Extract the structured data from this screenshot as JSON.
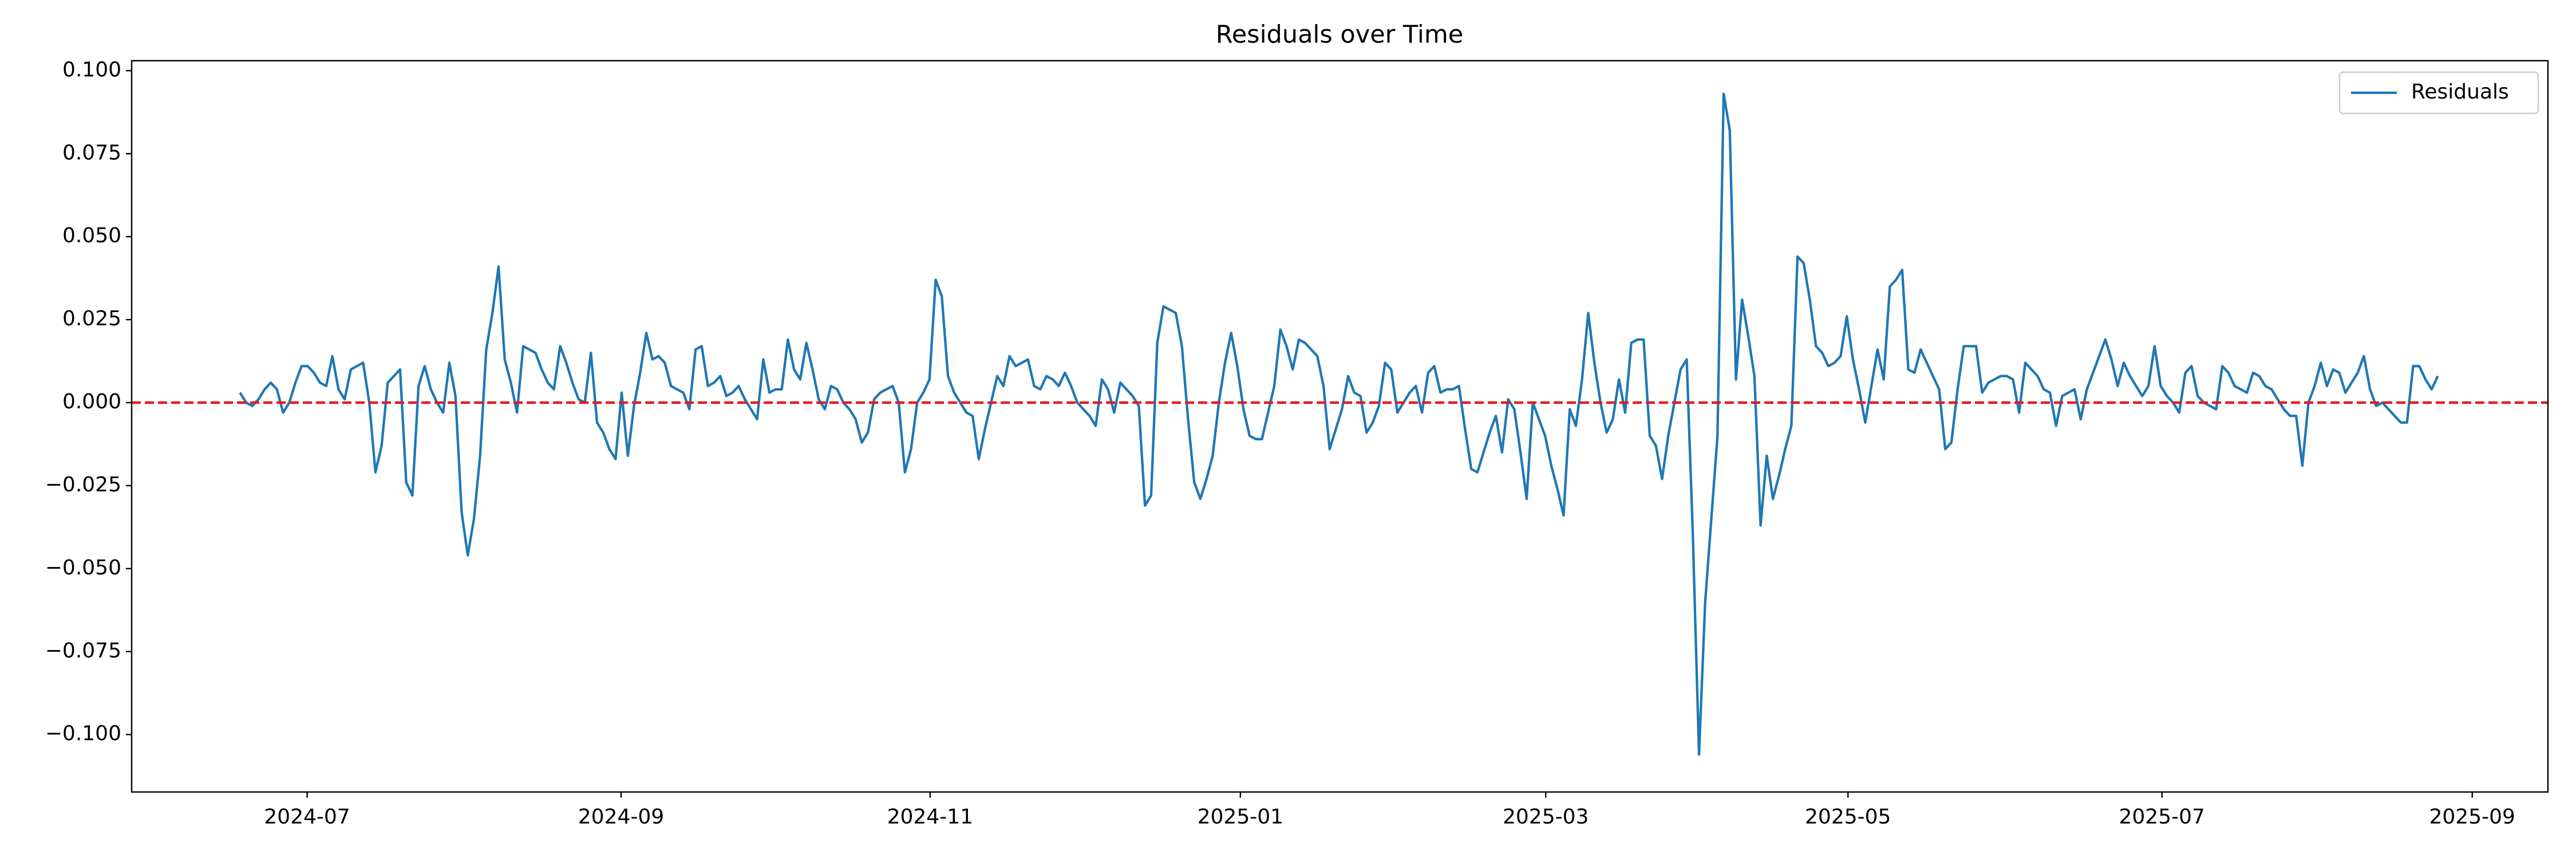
{
  "chart_data": {
    "type": "line",
    "title": "Residuals over Time",
    "series": [
      {
        "name": "Residuals",
        "color": "#1f77b4",
        "values": [
          0.003,
          0.0,
          -0.001,
          0.001,
          0.004,
          0.006,
          0.004,
          -0.003,
          0.0,
          0.006,
          0.011,
          0.011,
          0.009,
          0.006,
          0.005,
          0.014,
          0.004,
          0.001,
          0.01,
          0.011,
          0.012,
          0.0,
          -0.021,
          -0.013,
          0.006,
          0.008,
          0.01,
          -0.024,
          -0.028,
          0.005,
          0.011,
          0.004,
          0.0,
          -0.003,
          0.012,
          0.002,
          -0.033,
          -0.046,
          -0.035,
          -0.016,
          0.016,
          0.027,
          0.041,
          0.013,
          0.006,
          -0.003,
          0.017,
          0.016,
          0.015,
          0.01,
          0.006,
          0.004,
          0.017,
          0.012,
          0.006,
          0.001,
          0.0,
          0.015,
          -0.006,
          -0.009,
          -0.014,
          -0.017,
          0.003,
          -0.016,
          -0.001,
          0.009,
          0.021,
          0.013,
          0.014,
          0.012,
          0.005,
          0.004,
          0.003,
          -0.002,
          0.016,
          0.017,
          0.005,
          0.006,
          0.008,
          0.002,
          0.003,
          0.005,
          0.001,
          -0.002,
          -0.005,
          0.013,
          0.003,
          0.004,
          0.004,
          0.019,
          0.01,
          0.007,
          0.018,
          0.01,
          0.001,
          -0.002,
          0.005,
          0.004,
          0.0,
          -0.002,
          -0.005,
          -0.012,
          -0.009,
          0.001,
          0.003,
          0.004,
          0.005,
          0.0,
          -0.021,
          -0.014,
          0.0,
          0.003,
          0.007,
          0.037,
          0.032,
          0.008,
          0.003,
          0.0,
          -0.003,
          -0.004,
          -0.017,
          -0.008,
          0.0,
          0.008,
          0.005,
          0.014,
          0.011,
          0.012,
          0.013,
          0.005,
          0.004,
          0.008,
          0.007,
          0.005,
          0.009,
          0.005,
          0.0,
          -0.002,
          -0.004,
          -0.007,
          0.007,
          0.004,
          -0.003,
          0.006,
          0.004,
          0.002,
          -0.001,
          -0.031,
          -0.028,
          0.018,
          0.029,
          0.028,
          0.027,
          0.017,
          -0.005,
          -0.024,
          -0.029,
          -0.023,
          -0.016,
          0.0,
          0.012,
          0.021,
          0.011,
          -0.002,
          -0.01,
          -0.011,
          -0.011,
          -0.003,
          0.005,
          0.022,
          0.017,
          0.01,
          0.019,
          0.018,
          0.016,
          0.014,
          0.005,
          -0.014,
          -0.008,
          -0.002,
          0.008,
          0.003,
          0.002,
          -0.009,
          -0.006,
          -0.001,
          0.012,
          0.01,
          -0.003,
          0.0,
          0.003,
          0.005,
          -0.003,
          0.009,
          0.011,
          0.003,
          0.004,
          0.004,
          0.005,
          -0.008,
          -0.02,
          -0.021,
          -0.015,
          -0.009,
          -0.004,
          -0.015,
          0.001,
          -0.002,
          -0.015,
          -0.029,
          0.0,
          -0.005,
          -0.01,
          -0.019,
          -0.026,
          -0.034,
          -0.002,
          -0.007,
          0.007,
          0.027,
          0.012,
          0.0,
          -0.009,
          -0.005,
          0.007,
          -0.003,
          0.018,
          0.019,
          0.019,
          -0.01,
          -0.013,
          -0.023,
          -0.01,
          0.0,
          0.01,
          0.013,
          -0.04,
          -0.106,
          -0.06,
          -0.035,
          -0.01,
          0.093,
          0.082,
          0.007,
          0.031,
          0.02,
          0.008,
          -0.037,
          -0.016,
          -0.029,
          -0.022,
          -0.014,
          -0.007,
          0.044,
          0.042,
          0.031,
          0.017,
          0.015,
          0.011,
          0.012,
          0.014,
          0.026,
          0.013,
          0.004,
          -0.006,
          0.005,
          0.016,
          0.007,
          0.035,
          0.037,
          0.04,
          0.01,
          0.009,
          0.016,
          0.012,
          0.008,
          0.004,
          -0.014,
          -0.012,
          0.004,
          0.017,
          0.017,
          0.017,
          0.003,
          0.006,
          0.007,
          0.008,
          0.008,
          0.007,
          -0.003,
          0.012,
          0.01,
          0.008,
          0.004,
          0.003,
          -0.007,
          0.002,
          0.003,
          0.004,
          -0.005,
          0.004,
          0.009,
          0.014,
          0.019,
          0.013,
          0.005,
          0.012,
          0.008,
          0.005,
          0.002,
          0.005,
          0.017,
          0.005,
          0.002,
          0.0,
          -0.003,
          0.009,
          0.011,
          0.002,
          0.0,
          -0.001,
          -0.002,
          0.011,
          0.009,
          0.005,
          0.004,
          0.003,
          0.009,
          0.008,
          0.005,
          0.004,
          0.001,
          -0.002,
          -0.004,
          -0.004,
          -0.019,
          0.0,
          0.005,
          0.012,
          0.005,
          0.01,
          0.009,
          0.003,
          0.006,
          0.009,
          0.014,
          0.004,
          -0.001,
          0.0,
          -0.002,
          -0.004,
          -0.006,
          -0.006,
          0.011,
          0.011,
          0.007,
          0.004,
          0.008
        ]
      }
    ],
    "reference_line": {
      "value": 0,
      "color": "#e31a1c"
    },
    "xlim": [
      -17.6,
      374.9
    ],
    "xticks": [
      {
        "value": 10.9,
        "label": "2024-07"
      },
      {
        "value": 61.9,
        "label": "2024-09"
      },
      {
        "value": 112.1,
        "label": "2024-11"
      },
      {
        "value": 162.5,
        "label": "2025-01"
      },
      {
        "value": 212.1,
        "label": "2025-03"
      },
      {
        "value": 261.2,
        "label": "2025-05"
      },
      {
        "value": 312.2,
        "label": "2025-07"
      },
      {
        "value": 362.6,
        "label": "2025-09"
      }
    ],
    "ylim": [
      -0.1173,
      0.103
    ],
    "yticks": [
      {
        "value": -0.1,
        "label": "−0.100"
      },
      {
        "value": -0.075,
        "label": "−0.075"
      },
      {
        "value": -0.05,
        "label": "−0.050"
      },
      {
        "value": -0.025,
        "label": "−0.025"
      },
      {
        "value": 0,
        "label": "0.000"
      },
      {
        "value": 0.025,
        "label": "0.025"
      },
      {
        "value": 0.05,
        "label": "0.050"
      },
      {
        "value": 0.075,
        "label": "0.075"
      },
      {
        "value": 0.1,
        "label": "0.100"
      }
    ],
    "legend": "upper right"
  }
}
